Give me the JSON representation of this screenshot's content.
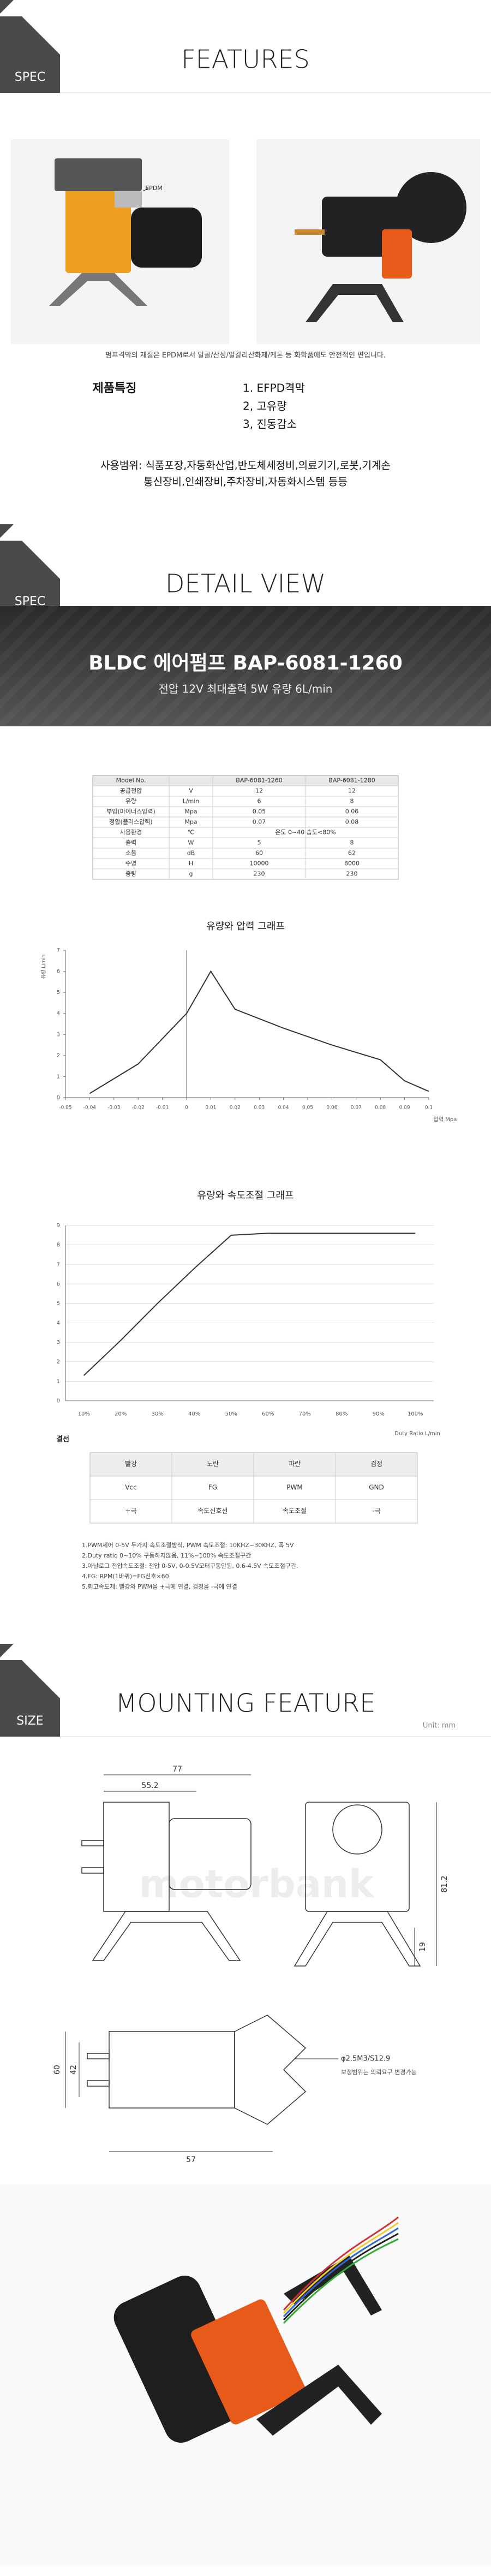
{
  "sections": [
    {
      "tag": "SPEC",
      "title": "FEATURES"
    },
    {
      "tag": "SPEC",
      "title": "DETAIL VIEW"
    },
    {
      "tag": "SIZE",
      "title": "MOUNTING FEATURE"
    }
  ],
  "features": {
    "image_label": "EPDM",
    "material_note": "펌프격막의 재질은 EPDM로서 알콜/산성/알칼리산화제/케톤 등 화학품에도 안전적인 편입니다.",
    "heading": "제품특징",
    "items": [
      "1. EFPD격막",
      "2, 고유량",
      "3, 진동감소"
    ],
    "usage": [
      "사용범위: 식품포장,자동화산업,반도체세정비,의료기기,로봇,기계손",
      "통신장비,인쇄장비,주차장비,자동화시스템 등등"
    ]
  },
  "banner": {
    "title": "BLDC 에어펌프 BAP-6081-1260",
    "subtitle": "전압 12V 최대출력 5W 유량 6L/min"
  },
  "spec_table": {
    "header": [
      "Model No.",
      "BAP-6081-1260",
      "BAP-6081-1280"
    ],
    "rows": [
      [
        "공급전압",
        "V",
        "12",
        "12"
      ],
      [
        "유량",
        "L/min",
        "6",
        "8"
      ],
      [
        "부압(마이너스압력)",
        "Mpa",
        "0.05",
        "0.06"
      ],
      [
        "정압(플러스압력)",
        "Mpa",
        "0.07",
        "0.08"
      ],
      [
        "사용환경",
        "℃",
        "온도 0~40 습도<80%"
      ],
      [
        "출력",
        "W",
        "5",
        "8"
      ],
      [
        "소음",
        "dB",
        "60",
        "62"
      ],
      [
        "수명",
        "H",
        "10000",
        "8000"
      ],
      [
        "중량",
        "g",
        "230",
        "230"
      ]
    ]
  },
  "chart_data": [
    {
      "type": "line",
      "title": "유량와 압력 그래프",
      "x_label": "압력 Mpa",
      "y_label": "유량 L/min",
      "x": [
        -0.04,
        -0.02,
        0,
        0.01,
        0.02,
        0.04,
        0.06,
        0.08,
        0.09,
        0.1
      ],
      "values": [
        0.2,
        1.6,
        4,
        6,
        4.2,
        3.3,
        2.5,
        1.8,
        0.8,
        0.3
      ],
      "color": "#333333",
      "xlim": [
        -0.05,
        0.1
      ],
      "xticks": [
        -0.05,
        -0.04,
        -0.03,
        -0.02,
        -0.01,
        0,
        0.01,
        0.02,
        0.03,
        0.04,
        0.05,
        0.06,
        0.07,
        0.08,
        0.09,
        0.1
      ],
      "ylim": [
        0,
        7
      ],
      "yticks": [
        0,
        1,
        2,
        3,
        4,
        5,
        6,
        7
      ],
      "grid": false
    },
    {
      "type": "line",
      "title": "유량와 속도조절 그래프",
      "x_label": "Duty Ratio L/min",
      "categories": [
        "10%",
        "20%",
        "30%",
        "40%",
        "50%",
        "60%",
        "70%",
        "80%",
        "90%",
        "100%"
      ],
      "values": [
        1.3,
        3.1,
        5,
        6.8,
        8.5,
        8.6,
        8.6,
        8.6,
        8.6,
        8.6
      ],
      "color": "#333333",
      "ylim": [
        0,
        9
      ],
      "yticks": [
        0,
        1,
        2,
        3,
        4,
        5,
        6,
        7,
        8,
        9
      ],
      "grid": true
    }
  ],
  "wiring": {
    "title": "결선",
    "rows": [
      [
        "빨강",
        "노란",
        "파란",
        "검정"
      ],
      [
        "Vcc",
        "FG",
        "PWM",
        "GND"
      ],
      [
        "+극",
        "속도신호선",
        "속도조절",
        "-극"
      ]
    ]
  },
  "notes": [
    "1.PWM제어 0-5V 두가지 속도조절방식, PWM 속도조절: 10KHZ~30KHZ, 폭 5V",
    "2.Duty ratio 0~10% 구동하지않음, 11%~100% 속도조절구간",
    "3.아날로그 전압속도조절: 전압 0-5V, 0-0.5V모터구동안됨, 0.6-4.5V 속도조절구간.",
    "4.FG: RPM(1바퀴)=FG신호×60",
    "5.회고속도제: 빨강와 PWM을 +극에 연결, 검정을 -극에 연결"
  ],
  "mounting": {
    "unit": "Unit: mm",
    "watermark": "motorbank",
    "dims": [
      "77",
      "55.2",
      "81.2",
      "19",
      "60",
      "42",
      "57",
      "φ2.5M3/S12.9"
    ],
    "note": "보정범위는 의뢰요구 변경가능"
  }
}
